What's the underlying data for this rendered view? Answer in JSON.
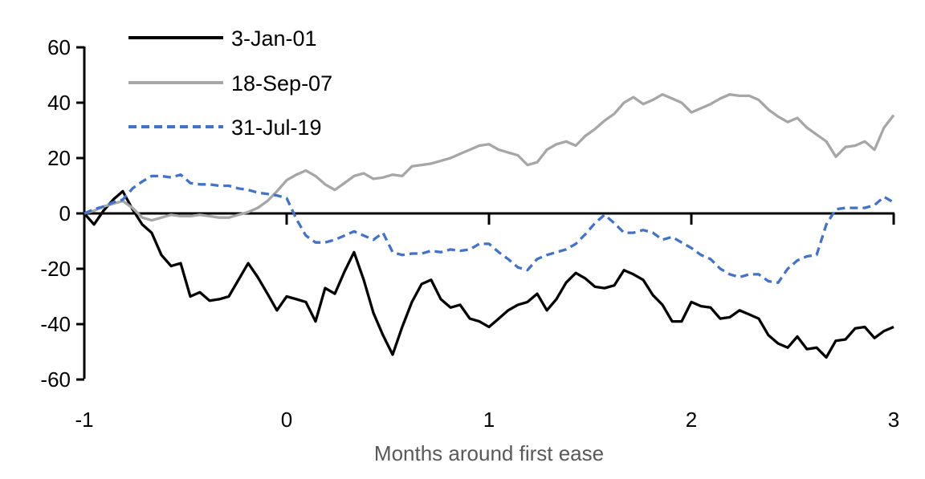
{
  "chart_data": {
    "type": "line",
    "title": "",
    "xlabel": "Months around first ease",
    "ylabel": "",
    "xlabel_color": "#595959",
    "axis_color": "#000000",
    "background_color": "#ffffff",
    "xlim": [
      -1,
      3
    ],
    "ylim": [
      -60,
      60
    ],
    "x_ticks": [
      -1,
      0,
      1,
      2,
      3
    ],
    "y_ticks": [
      60,
      40,
      20,
      0,
      -20,
      -40,
      -60
    ],
    "grid": false,
    "legend_position": "top-left",
    "x": [
      -1,
      -0.952,
      -0.905,
      -0.857,
      -0.81,
      -0.762,
      -0.714,
      -0.667,
      -0.619,
      -0.571,
      -0.524,
      -0.476,
      -0.429,
      -0.381,
      -0.333,
      -0.286,
      -0.238,
      -0.19,
      -0.143,
      -0.095,
      -0.048,
      0,
      0.048,
      0.095,
      0.143,
      0.19,
      0.238,
      0.286,
      0.333,
      0.381,
      0.429,
      0.476,
      0.524,
      0.571,
      0.619,
      0.667,
      0.714,
      0.762,
      0.81,
      0.857,
      0.905,
      0.952,
      1,
      1.048,
      1.095,
      1.143,
      1.19,
      1.238,
      1.286,
      1.333,
      1.381,
      1.429,
      1.476,
      1.524,
      1.571,
      1.619,
      1.667,
      1.714,
      1.762,
      1.81,
      1.857,
      1.905,
      1.952,
      2,
      2.048,
      2.095,
      2.143,
      2.19,
      2.238,
      2.286,
      2.333,
      2.381,
      2.429,
      2.476,
      2.524,
      2.571,
      2.619,
      2.667,
      2.714,
      2.762,
      2.81,
      2.857,
      2.905,
      2.952,
      3
    ],
    "series": [
      {
        "name": "3-Jan-01",
        "color": "#000000",
        "style": "solid",
        "values": [
          0,
          -4,
          1,
          5,
          8,
          1.5,
          -4,
          -7,
          -15,
          -19,
          -18,
          -30,
          -28.5,
          -31.5,
          -31,
          -30,
          -24,
          -18,
          -23,
          -29,
          -35,
          -30,
          -31,
          -32,
          -39,
          -27,
          -29,
          -21,
          -14,
          -24,
          -36,
          -44,
          -51,
          -41,
          -32,
          -25.5,
          -24,
          -31,
          -34,
          -33,
          -38,
          -39,
          -41,
          -38,
          -35,
          -33,
          -32,
          -29,
          -35,
          -31,
          -25,
          -21.5,
          -23.5,
          -26.5,
          -27,
          -26,
          -20.5,
          -22,
          -24,
          -29.5,
          -33,
          -39,
          -39,
          -32,
          -33.5,
          -34,
          -38,
          -37.5,
          -35,
          -36.5,
          -38,
          -44,
          -47,
          -48.5,
          -44.5,
          -49,
          -48.5,
          -52,
          -46,
          -45.5,
          -41.5,
          -41,
          -45,
          -42.5,
          -41
        ]
      },
      {
        "name": "18-Sep-07",
        "color": "#a6a6a6",
        "style": "solid",
        "values": [
          0,
          1,
          2.5,
          3.5,
          4.5,
          2,
          -1.5,
          -2.5,
          -1.5,
          -0.5,
          -1,
          -1,
          -0.5,
          -1,
          -1.5,
          -1.5,
          -0.5,
          0.5,
          2,
          4.5,
          8,
          12,
          14,
          15.5,
          13.5,
          10.5,
          8.5,
          11,
          13.5,
          14.5,
          12.5,
          13,
          14,
          13.5,
          17,
          17.5,
          18,
          19,
          20,
          21.5,
          23,
          24.5,
          25,
          23,
          22,
          21,
          17.5,
          18.5,
          23,
          25,
          26,
          24.5,
          28,
          30.5,
          33.5,
          36,
          40,
          42,
          39.5,
          41,
          43,
          41.5,
          40,
          36.5,
          38,
          39.5,
          41.5,
          43,
          42.5,
          42.5,
          41,
          37.5,
          35,
          33,
          34.5,
          31,
          28.5,
          26,
          20.5,
          24,
          24.5,
          26,
          23,
          31,
          35.5
        ]
      },
      {
        "name": "31-Jul-19",
        "color": "#4472c4",
        "style": "dashed",
        "values": [
          0,
          1.5,
          2.5,
          4,
          5,
          9,
          11.5,
          13.5,
          13.5,
          13,
          14,
          11,
          10.5,
          10.5,
          10,
          10,
          9,
          8.5,
          7.5,
          7,
          6.5,
          5.5,
          -2,
          -8,
          -10.5,
          -10.5,
          -9.5,
          -8,
          -6.5,
          -8,
          -9.5,
          -7,
          -14,
          -15,
          -14.5,
          -14.5,
          -13.5,
          -14,
          -13,
          -13.5,
          -13,
          -11,
          -11,
          -14,
          -16.5,
          -19.5,
          -20.5,
          -16.5,
          -15,
          -14,
          -13,
          -11,
          -7.5,
          -3.5,
          -0.5,
          -3.5,
          -7,
          -7,
          -6,
          -7,
          -9.5,
          -8.5,
          -10.5,
          -12.5,
          -15,
          -16.5,
          -20,
          -22,
          -23,
          -22,
          -22,
          -24.5,
          -25,
          -20,
          -17,
          -15.5,
          -15,
          -4,
          1.5,
          2,
          2,
          2,
          3,
          6,
          4
        ]
      }
    ]
  }
}
